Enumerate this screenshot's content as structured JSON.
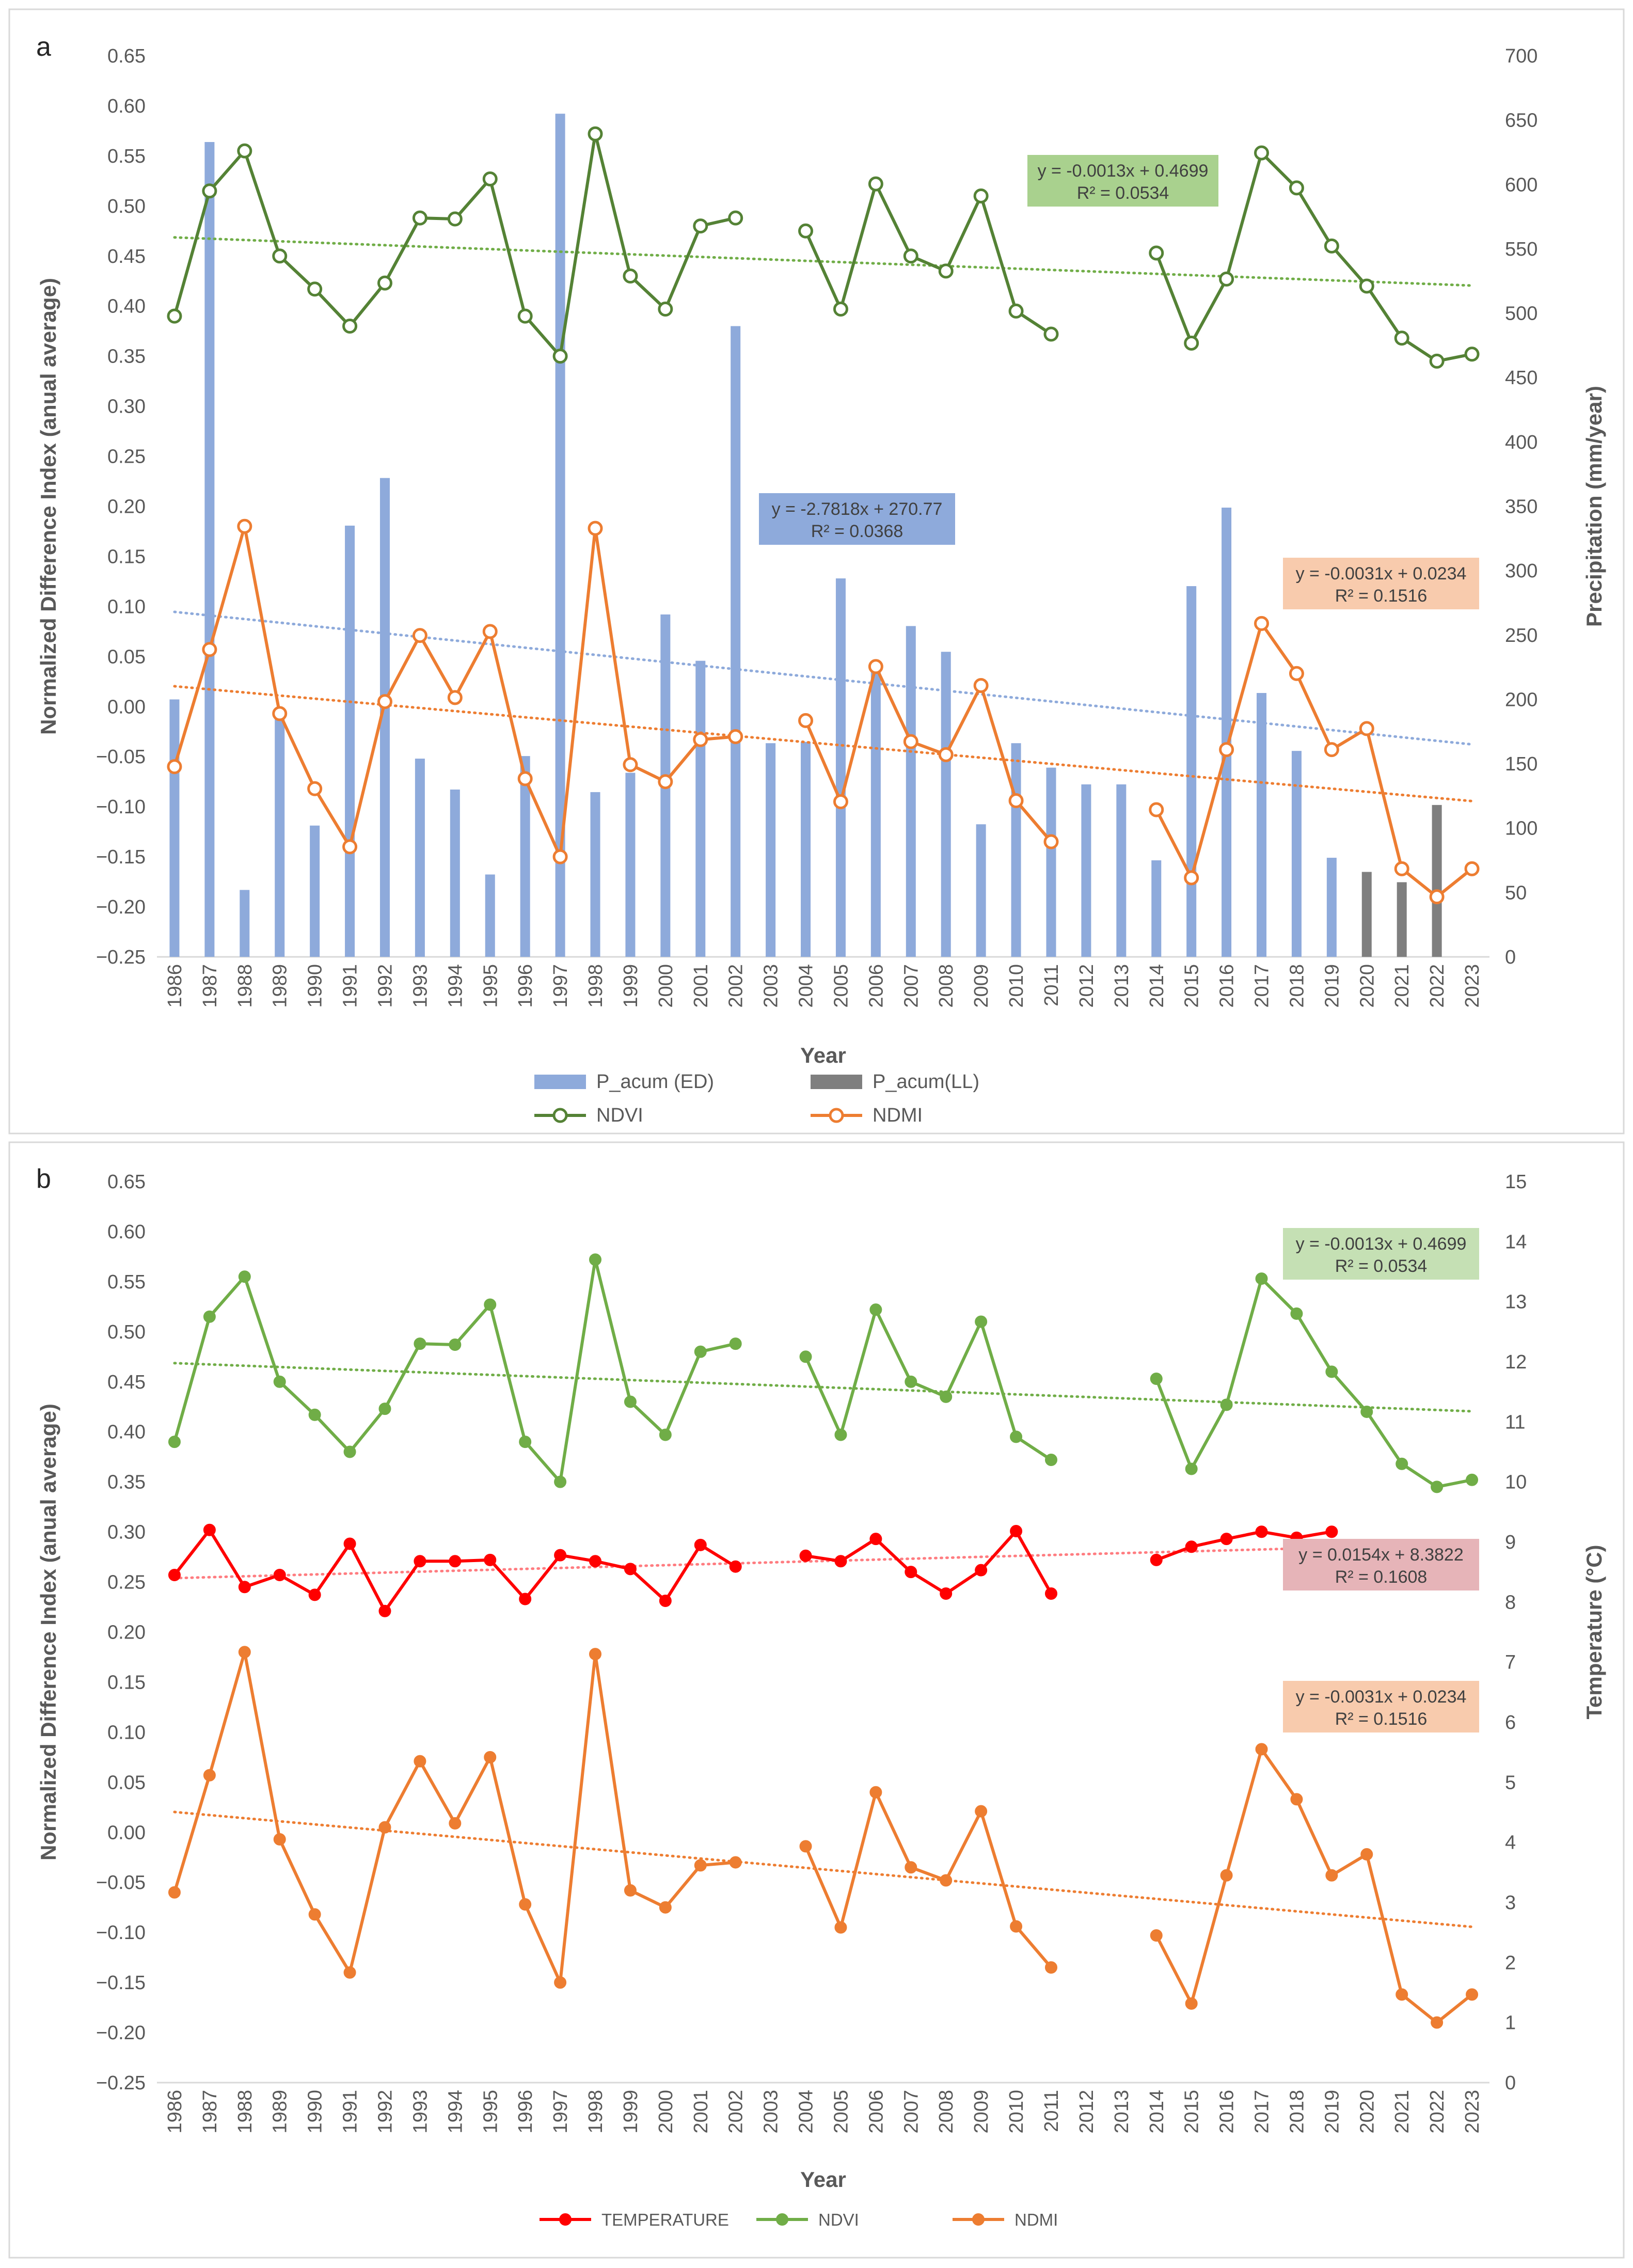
{
  "chart_data": [
    {
      "panel": "a",
      "type": "bar+line",
      "categories": [
        "1986",
        "1987",
        "1988",
        "1989",
        "1990",
        "1991",
        "1992",
        "1993",
        "1994",
        "1995",
        "1996",
        "1997",
        "1998",
        "1999",
        "2000",
        "2001",
        "2002",
        "2003",
        "2004",
        "2005",
        "2006",
        "2007",
        "2008",
        "2009",
        "2010",
        "2011",
        "2012",
        "2013",
        "2014",
        "2015",
        "2016",
        "2017",
        "2018",
        "2019",
        "2020",
        "2021",
        "2022",
        "2023"
      ],
      "xlabel": "Year",
      "ylabel": "Normalized Difference Index (anual  average)",
      "y2label": "Precipitation (mm/year)",
      "ylim": [
        -0.25,
        0.65
      ],
      "y2lim": [
        0,
        700
      ],
      "yticks": [
        "0.65",
        "0.60",
        "0.55",
        "0.50",
        "0.45",
        "0.40",
        "0.35",
        "0.30",
        "0.25",
        "0.20",
        "0.15",
        "0.10",
        "0.05",
        "0.00",
        "−0.05",
        "−0.10",
        "−0.15",
        "−0.20",
        "−0.25"
      ],
      "y2ticks": [
        "700",
        "650",
        "600",
        "550",
        "500",
        "450",
        "400",
        "350",
        "300",
        "250",
        "200",
        "150",
        "100",
        "50",
        "0"
      ],
      "bar_series": [
        {
          "name": "P_acum (ED)",
          "color": "#8eaadb",
          "values": [
            200,
            633,
            52,
            190,
            102,
            335,
            372,
            154,
            130,
            64,
            156,
            655,
            128,
            143,
            266,
            230,
            490,
            166,
            167,
            294,
            226,
            257,
            237,
            103,
            166,
            147,
            134,
            134,
            75,
            288,
            349,
            205,
            160,
            77,
            null,
            null,
            null,
            null
          ]
        },
        {
          "name": "P_acum(LL)",
          "color": "#7f7f7f",
          "values": [
            null,
            null,
            null,
            null,
            null,
            null,
            null,
            null,
            null,
            null,
            null,
            null,
            null,
            null,
            null,
            null,
            null,
            null,
            null,
            null,
            null,
            null,
            null,
            null,
            null,
            null,
            null,
            null,
            null,
            null,
            null,
            null,
            null,
            null,
            66,
            58,
            118,
            null
          ]
        }
      ],
      "line_series": [
        {
          "name": "NDVI",
          "color": "#548235",
          "marker": "open",
          "values": [
            0.39,
            0.515,
            0.555,
            0.45,
            0.417,
            0.38,
            0.423,
            0.488,
            0.487,
            0.527,
            0.39,
            0.35,
            0.572,
            0.43,
            0.397,
            0.48,
            0.488,
            null,
            0.475,
            0.397,
            0.522,
            0.45,
            0.435,
            0.51,
            0.395,
            0.372,
            null,
            null,
            0.453,
            0.363,
            0.427,
            0.553,
            0.518,
            0.46,
            0.42,
            0.368,
            0.345,
            0.352
          ]
        },
        {
          "name": "NDMI",
          "color": "#ed7d31",
          "marker": "open",
          "values": [
            -0.06,
            0.057,
            0.18,
            -0.007,
            -0.082,
            -0.14,
            0.005,
            0.071,
            0.009,
            0.075,
            -0.072,
            -0.15,
            0.178,
            -0.058,
            -0.075,
            -0.033,
            -0.03,
            null,
            -0.014,
            -0.095,
            0.04,
            -0.035,
            -0.048,
            0.021,
            -0.094,
            -0.135,
            null,
            null,
            -0.103,
            -0.171,
            -0.043,
            0.083,
            0.033,
            -0.043,
            -0.022,
            -0.162,
            -0.19,
            -0.162
          ]
        }
      ],
      "trendlines": [
        {
          "series": "NDVI",
          "color": "#70ad47",
          "axis": "y",
          "equation": "y = -0.0013x + 0.4699",
          "r2": "R² = 0.0534",
          "box_color": "#a9d18e",
          "slope": -0.0013,
          "intercept": 0.4699
        },
        {
          "series": "P_acum (ED)",
          "color": "#8eaadb",
          "axis": "y2",
          "equation": "y = -2.7818x + 270.77",
          "r2": "R² = 0.0368",
          "box_color": "#8eaadb",
          "slope": -2.7818,
          "intercept": 270.77
        },
        {
          "series": "NDMI",
          "color": "#ed7d31",
          "axis": "y",
          "equation": "y = -0.0031x + 0.0234",
          "r2": "R² = 0.1516",
          "box_color": "#f8cbad",
          "slope": -0.0031,
          "intercept": 0.0234
        }
      ],
      "legend": [
        "P_acum (ED)",
        "P_acum(LL)",
        "NDVI",
        "NDMI"
      ],
      "legend_position": "bottom"
    },
    {
      "panel": "b",
      "type": "line",
      "categories": [
        "1986",
        "1987",
        "1988",
        "1989",
        "1990",
        "1991",
        "1992",
        "1993",
        "1994",
        "1995",
        "1996",
        "1997",
        "1998",
        "1999",
        "2000",
        "2001",
        "2002",
        "2003",
        "2004",
        "2005",
        "2006",
        "2007",
        "2008",
        "2009",
        "2010",
        "2011",
        "2012",
        "2013",
        "2014",
        "2015",
        "2016",
        "2017",
        "2018",
        "2019",
        "2020",
        "2021",
        "2022",
        "2023"
      ],
      "xlabel": "Year",
      "ylabel": "Normalized Difference Index (anual  average)",
      "y2label": "Temperature (°C)",
      "ylim": [
        -0.25,
        0.65
      ],
      "y2lim": [
        0,
        15
      ],
      "yticks": [
        "0.65",
        "0.60",
        "0.55",
        "0.50",
        "0.45",
        "0.40",
        "0.35",
        "0.30",
        "0.25",
        "0.20",
        "0.15",
        "0.10",
        "0.05",
        "0.00",
        "−0.05",
        "−0.10",
        "−0.15",
        "−0.20",
        "−0.25"
      ],
      "y2ticks": [
        "15",
        "14",
        "13",
        "12",
        "11",
        "10",
        "9",
        "8",
        "7",
        "6",
        "5",
        "4",
        "3",
        "2",
        "1",
        "0"
      ],
      "line_series": [
        {
          "name": "TEMPERATURE",
          "color": "#ff0000",
          "marker": "filled",
          "axis": "y2",
          "values": [
            8.45,
            9.2,
            8.25,
            8.45,
            8.12,
            8.97,
            7.85,
            8.68,
            8.68,
            8.7,
            8.05,
            8.78,
            8.68,
            8.55,
            8.02,
            8.95,
            8.59,
            null,
            8.77,
            8.68,
            9.05,
            8.5,
            8.14,
            8.53,
            9.18,
            8.14,
            null,
            null,
            8.7,
            8.92,
            9.05,
            9.17,
            9.07,
            9.17,
            null,
            null,
            null,
            null
          ]
        },
        {
          "name": "NDVI",
          "color": "#70ad47",
          "marker": "filled",
          "axis": "y",
          "values": [
            0.39,
            0.515,
            0.555,
            0.45,
            0.417,
            0.38,
            0.423,
            0.488,
            0.487,
            0.527,
            0.39,
            0.35,
            0.572,
            0.43,
            0.397,
            0.48,
            0.488,
            null,
            0.475,
            0.397,
            0.522,
            0.45,
            0.435,
            0.51,
            0.395,
            0.372,
            null,
            null,
            0.453,
            0.363,
            0.427,
            0.553,
            0.518,
            0.46,
            0.42,
            0.368,
            0.345,
            0.352
          ]
        },
        {
          "name": "NDMI",
          "color": "#ed7d31",
          "marker": "filled",
          "axis": "y",
          "values": [
            -0.06,
            0.057,
            0.18,
            -0.007,
            -0.082,
            -0.14,
            0.005,
            0.071,
            0.009,
            0.075,
            -0.072,
            -0.15,
            0.178,
            -0.058,
            -0.075,
            -0.033,
            -0.03,
            null,
            -0.014,
            -0.095,
            0.04,
            -0.035,
            -0.048,
            0.021,
            -0.094,
            -0.135,
            null,
            null,
            -0.103,
            -0.171,
            -0.043,
            0.083,
            0.033,
            -0.043,
            -0.022,
            -0.162,
            -0.19,
            -0.162
          ]
        }
      ],
      "trendlines": [
        {
          "series": "NDVI",
          "color": "#70ad47",
          "axis": "y",
          "equation": "y = -0.0013x + 0.4699",
          "r2": "R² = 0.0534",
          "box_color": "#c5e0b4",
          "slope": -0.0013,
          "intercept": 0.4699,
          "range": [
            1,
            38
          ]
        },
        {
          "series": "TEMPERATURE",
          "color": "#ff7c80",
          "axis": "y2",
          "equation": "y = 0.0154x + 8.3822",
          "r2": "R² = 0.1608",
          "box_color": "#e6b4b8",
          "slope": 0.0154,
          "intercept": 8.3822,
          "range": [
            1,
            34
          ]
        },
        {
          "series": "NDMI",
          "color": "#ed7d31",
          "axis": "y",
          "equation": "y = -0.0031x + 0.0234",
          "r2": "R² = 0.1516",
          "box_color": "#f8cbad",
          "slope": -0.0031,
          "intercept": 0.0234,
          "range": [
            1,
            38
          ]
        }
      ],
      "legend": [
        "TEMPERATURE",
        "NDVI",
        "NDMI"
      ],
      "legend_position": "bottom"
    }
  ]
}
